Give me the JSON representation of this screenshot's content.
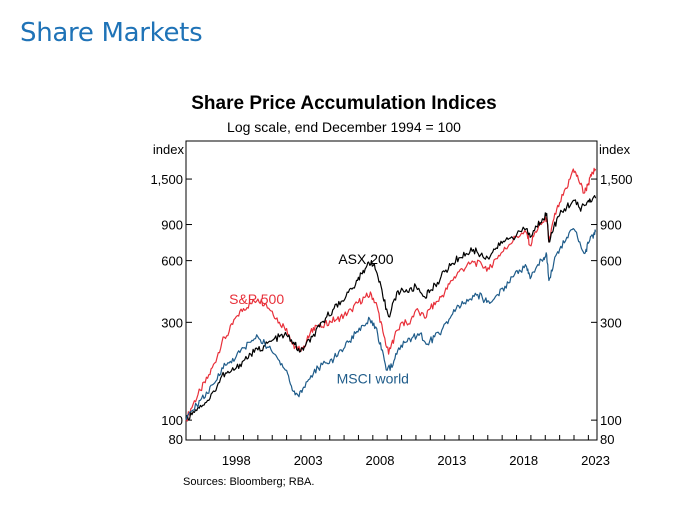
{
  "page": {
    "heading": "Share Markets"
  },
  "chart_data": {
    "type": "line",
    "title": "Share Price Accumulation Indices",
    "subtitle": "Log scale, end December 1994 = 100",
    "y_unit_left": "index",
    "y_unit_right": "index",
    "y_scale": "log",
    "ylim": [
      80,
      2300
    ],
    "y_ticks": [
      80,
      100,
      300,
      600,
      900,
      1500
    ],
    "y_tick_labels": [
      "80",
      "100",
      "300",
      "600",
      "900",
      "1,500"
    ],
    "xlim": [
      1995.0,
      2023.6
    ],
    "x_ticks": [
      1998,
      2003,
      2008,
      2013,
      2018,
      2023
    ],
    "x_tick_labels": [
      "1998",
      "2003",
      "2008",
      "2013",
      "2018",
      "2023"
    ],
    "grid": false,
    "source": "Sources: Bloomberg; RBA.",
    "series": [
      {
        "name": "S&P 500",
        "color": "#e8303a",
        "points": [
          [
            1995.0,
            100
          ],
          [
            1995.5,
            120
          ],
          [
            1996.0,
            140
          ],
          [
            1996.5,
            160
          ],
          [
            1997.0,
            190
          ],
          [
            1997.5,
            240
          ],
          [
            1998.0,
            270
          ],
          [
            1998.5,
            320
          ],
          [
            1999.0,
            350
          ],
          [
            1999.5,
            370
          ],
          [
            2000.0,
            390
          ],
          [
            2000.5,
            370
          ],
          [
            2001.0,
            340
          ],
          [
            2001.5,
            300
          ],
          [
            2002.0,
            280
          ],
          [
            2002.4,
            235
          ],
          [
            2002.8,
            220
          ],
          [
            2003.2,
            230
          ],
          [
            2003.6,
            260
          ],
          [
            2004.0,
            290
          ],
          [
            2004.5,
            285
          ],
          [
            2005.0,
            305
          ],
          [
            2005.5,
            310
          ],
          [
            2006.0,
            325
          ],
          [
            2006.5,
            345
          ],
          [
            2007.0,
            375
          ],
          [
            2007.5,
            400
          ],
          [
            2007.9,
            410
          ],
          [
            2008.3,
            360
          ],
          [
            2008.7,
            270
          ],
          [
            2009.1,
            210
          ],
          [
            2009.5,
            255
          ],
          [
            2010.0,
            300
          ],
          [
            2010.5,
            295
          ],
          [
            2011.0,
            345
          ],
          [
            2011.6,
            315
          ],
          [
            2012.0,
            350
          ],
          [
            2012.5,
            380
          ],
          [
            2013.0,
            420
          ],
          [
            2013.5,
            480
          ],
          [
            2014.0,
            530
          ],
          [
            2014.5,
            560
          ],
          [
            2015.0,
            590
          ],
          [
            2015.6,
            570
          ],
          [
            2016.1,
            545
          ],
          [
            2016.5,
            610
          ],
          [
            2017.0,
            660
          ],
          [
            2017.5,
            720
          ],
          [
            2018.0,
            790
          ],
          [
            2018.7,
            820
          ],
          [
            2018.95,
            710
          ],
          [
            2019.3,
            830
          ],
          [
            2019.8,
            920
          ],
          [
            2020.1,
            970
          ],
          [
            2020.25,
            740
          ],
          [
            2020.6,
            960
          ],
          [
            2021.0,
            1150
          ],
          [
            2021.5,
            1350
          ],
          [
            2021.95,
            1680
          ],
          [
            2022.3,
            1500
          ],
          [
            2022.7,
            1280
          ],
          [
            2022.95,
            1400
          ],
          [
            2023.2,
            1550
          ],
          [
            2023.5,
            1680
          ]
        ]
      },
      {
        "name": "ASX 200",
        "color": "#000000",
        "points": [
          [
            1995.0,
            100
          ],
          [
            1995.5,
            110
          ],
          [
            1996.0,
            118
          ],
          [
            1996.5,
            125
          ],
          [
            1997.0,
            138
          ],
          [
            1997.5,
            165
          ],
          [
            1998.0,
            170
          ],
          [
            1998.5,
            180
          ],
          [
            1999.0,
            195
          ],
          [
            1999.5,
            210
          ],
          [
            2000.0,
            220
          ],
          [
            2000.5,
            230
          ],
          [
            2001.0,
            245
          ],
          [
            2001.5,
            255
          ],
          [
            2002.0,
            260
          ],
          [
            2002.5,
            240
          ],
          [
            2002.9,
            215
          ],
          [
            2003.3,
            230
          ],
          [
            2003.8,
            255
          ],
          [
            2004.3,
            285
          ],
          [
            2004.8,
            320
          ],
          [
            2005.3,
            350
          ],
          [
            2005.8,
            380
          ],
          [
            2006.3,
            420
          ],
          [
            2006.8,
            460
          ],
          [
            2007.2,
            520
          ],
          [
            2007.6,
            570
          ],
          [
            2007.9,
            600
          ],
          [
            2008.3,
            520
          ],
          [
            2008.7,
            400
          ],
          [
            2009.1,
            320
          ],
          [
            2009.5,
            390
          ],
          [
            2010.0,
            440
          ],
          [
            2010.5,
            420
          ],
          [
            2011.0,
            450
          ],
          [
            2011.6,
            400
          ],
          [
            2012.0,
            430
          ],
          [
            2012.5,
            470
          ],
          [
            2013.0,
            530
          ],
          [
            2013.5,
            580
          ],
          [
            2014.0,
            620
          ],
          [
            2014.5,
            650
          ],
          [
            2015.0,
            680
          ],
          [
            2015.5,
            640
          ],
          [
            2016.0,
            620
          ],
          [
            2016.5,
            680
          ],
          [
            2017.0,
            730
          ],
          [
            2017.5,
            770
          ],
          [
            2018.0,
            800
          ],
          [
            2018.7,
            860
          ],
          [
            2018.95,
            780
          ],
          [
            2019.4,
            880
          ],
          [
            2019.8,
            960
          ],
          [
            2020.1,
            1020
          ],
          [
            2020.25,
            740
          ],
          [
            2020.6,
            880
          ],
          [
            2021.0,
            1000
          ],
          [
            2021.5,
            1100
          ],
          [
            2021.95,
            1180
          ],
          [
            2022.4,
            1080
          ],
          [
            2022.8,
            1120
          ],
          [
            2023.1,
            1200
          ],
          [
            2023.5,
            1210
          ]
        ]
      },
      {
        "name": "MSCI world",
        "color": "#1f5c8a",
        "points": [
          [
            1995.0,
            100
          ],
          [
            1995.5,
            112
          ],
          [
            1996.0,
            125
          ],
          [
            1996.5,
            135
          ],
          [
            1997.0,
            152
          ],
          [
            1997.5,
            180
          ],
          [
            1998.0,
            190
          ],
          [
            1998.5,
            205
          ],
          [
            1999.0,
            225
          ],
          [
            1999.5,
            240
          ],
          [
            2000.0,
            255
          ],
          [
            2000.5,
            235
          ],
          [
            2001.0,
            215
          ],
          [
            2001.5,
            195
          ],
          [
            2002.0,
            175
          ],
          [
            2002.4,
            140
          ],
          [
            2002.8,
            132
          ],
          [
            2003.2,
            145
          ],
          [
            2003.7,
            165
          ],
          [
            2004.2,
            180
          ],
          [
            2004.8,
            190
          ],
          [
            2005.3,
            200
          ],
          [
            2005.8,
            220
          ],
          [
            2006.3,
            240
          ],
          [
            2006.8,
            265
          ],
          [
            2007.3,
            290
          ],
          [
            2007.8,
            310
          ],
          [
            2008.2,
            285
          ],
          [
            2008.6,
            220
          ],
          [
            2009.0,
            175
          ],
          [
            2009.4,
            185
          ],
          [
            2009.8,
            225
          ],
          [
            2010.3,
            240
          ],
          [
            2010.8,
            255
          ],
          [
            2011.3,
            265
          ],
          [
            2011.8,
            235
          ],
          [
            2012.3,
            255
          ],
          [
            2012.8,
            275
          ],
          [
            2013.3,
            310
          ],
          [
            2013.8,
            350
          ],
          [
            2014.3,
            370
          ],
          [
            2014.8,
            390
          ],
          [
            2015.3,
            410
          ],
          [
            2015.8,
            385
          ],
          [
            2016.2,
            375
          ],
          [
            2016.7,
            410
          ],
          [
            2017.2,
            450
          ],
          [
            2017.7,
            500
          ],
          [
            2018.2,
            540
          ],
          [
            2018.7,
            560
          ],
          [
            2018.95,
            490
          ],
          [
            2019.4,
            560
          ],
          [
            2019.9,
            620
          ],
          [
            2020.1,
            640
          ],
          [
            2020.25,
            480
          ],
          [
            2020.6,
            590
          ],
          [
            2021.0,
            680
          ],
          [
            2021.5,
            780
          ],
          [
            2021.95,
            860
          ],
          [
            2022.4,
            740
          ],
          [
            2022.75,
            650
          ],
          [
            2023.0,
            730
          ],
          [
            2023.3,
            790
          ],
          [
            2023.5,
            830
          ]
        ]
      }
    ],
    "annotations": [
      {
        "text": "ASX 200",
        "series": "ASX 200",
        "color": "#000000"
      },
      {
        "text": "S&P 500",
        "series": "S&P 500",
        "color": "#e8303a"
      },
      {
        "text": "MSCI world",
        "series": "MSCI world",
        "color": "#1f5c8a"
      }
    ]
  }
}
